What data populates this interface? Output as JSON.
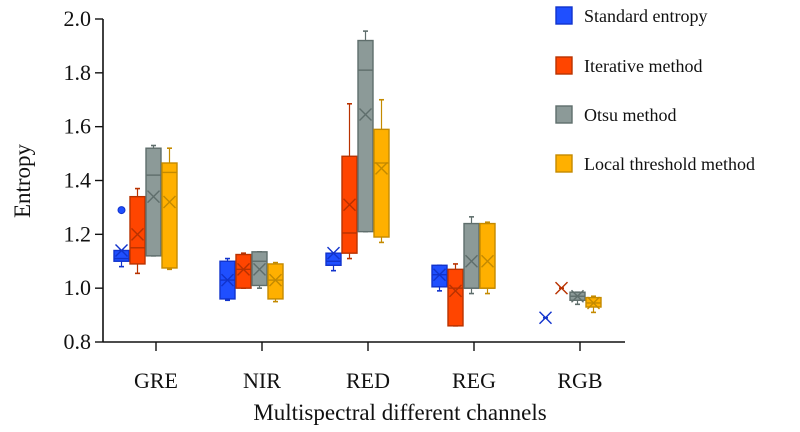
{
  "chart_data": {
    "type": "box",
    "title": "",
    "xlabel": "Multispectral different channels",
    "ylabel": "Entropy",
    "ylim": [
      0.8,
      2.0
    ],
    "yticks": [
      "0.8",
      "1.0",
      "1.2",
      "1.4",
      "1.6",
      "1.8",
      "2.0"
    ],
    "ytick_values": [
      0.8,
      1.0,
      1.2,
      1.4,
      1.6,
      1.8,
      2.0
    ],
    "categories": [
      "GRE",
      "NIR",
      "RED",
      "REG",
      "RGB"
    ],
    "legend_position": "top-right",
    "grid": false,
    "series": [
      {
        "name": "Standard entropy",
        "color": "#1f4fff",
        "stroke": "#1133cc",
        "boxes": [
          {
            "min": 1.08,
            "q1": 1.1,
            "median": 1.11,
            "q3": 1.14,
            "max": 1.14,
            "mean": 1.14,
            "outliers": [
              1.29
            ]
          },
          {
            "min": 0.955,
            "q1": 0.96,
            "median": 1.03,
            "q3": 1.1,
            "max": 1.11,
            "mean": 1.03,
            "outliers": []
          },
          {
            "min": 1.065,
            "q1": 1.085,
            "median": 1.1,
            "q3": 1.13,
            "max": 1.13,
            "mean": 1.13,
            "outliers": []
          },
          {
            "min": 0.99,
            "q1": 1.005,
            "median": 1.05,
            "q3": 1.085,
            "max": 1.085,
            "mean": 1.05,
            "outliers": []
          },
          {
            "min": 0.89,
            "q1": 0.89,
            "median": 0.89,
            "q3": 0.89,
            "max": 0.89,
            "mean": 0.89,
            "outliers": []
          }
        ]
      },
      {
        "name": "Iterative method",
        "color": "#ff4500",
        "stroke": "#b83200",
        "boxes": [
          {
            "min": 1.055,
            "q1": 1.09,
            "median": 1.15,
            "q3": 1.34,
            "max": 1.37,
            "mean": 1.2,
            "outliers": []
          },
          {
            "min": 1.0,
            "q1": 1.0,
            "median": 1.07,
            "q3": 1.125,
            "max": 1.13,
            "mean": 1.07,
            "outliers": []
          },
          {
            "min": 1.11,
            "q1": 1.13,
            "median": 1.205,
            "q3": 1.49,
            "max": 1.685,
            "mean": 1.31,
            "outliers": []
          },
          {
            "min": 0.86,
            "q1": 0.86,
            "median": 1.0,
            "q3": 1.07,
            "max": 1.09,
            "mean": 0.99,
            "outliers": []
          },
          {
            "min": 1.0,
            "q1": 1.0,
            "median": 1.0,
            "q3": 1.0,
            "max": 1.0,
            "mean": 1.0,
            "outliers": []
          }
        ]
      },
      {
        "name": "Otsu method",
        "color": "#8c9a98",
        "stroke": "#5f6e6c",
        "boxes": [
          {
            "min": 1.12,
            "q1": 1.12,
            "median": 1.42,
            "q3": 1.52,
            "max": 1.53,
            "mean": 1.34,
            "outliers": []
          },
          {
            "min": 1.0,
            "q1": 1.01,
            "median": 1.1,
            "q3": 1.135,
            "max": 1.135,
            "mean": 1.07,
            "outliers": []
          },
          {
            "min": 1.21,
            "q1": 1.21,
            "median": 1.81,
            "q3": 1.92,
            "max": 1.955,
            "mean": 1.645,
            "outliers": []
          },
          {
            "min": 0.98,
            "q1": 1.0,
            "median": 1.0,
            "q3": 1.24,
            "max": 1.265,
            "mean": 1.1,
            "outliers": []
          },
          {
            "min": 0.94,
            "q1": 0.955,
            "median": 0.97,
            "q3": 0.985,
            "max": 0.985,
            "mean": 0.97,
            "outliers": []
          }
        ]
      },
      {
        "name": "Local threshold method",
        "color": "#ffb000",
        "stroke": "#c48a00",
        "boxes": [
          {
            "min": 1.07,
            "q1": 1.075,
            "median": 1.43,
            "q3": 1.465,
            "max": 1.52,
            "mean": 1.32,
            "outliers": []
          },
          {
            "min": 0.95,
            "q1": 0.96,
            "median": 1.03,
            "q3": 1.09,
            "max": 1.095,
            "mean": 1.03,
            "outliers": []
          },
          {
            "min": 1.17,
            "q1": 1.19,
            "median": 1.465,
            "q3": 1.59,
            "max": 1.7,
            "mean": 1.445,
            "outliers": []
          },
          {
            "min": 0.98,
            "q1": 1.0,
            "median": 1.0,
            "q3": 1.24,
            "max": 1.245,
            "mean": 1.1,
            "outliers": []
          },
          {
            "min": 0.91,
            "q1": 0.93,
            "median": 0.945,
            "q3": 0.965,
            "max": 0.97,
            "mean": 0.945,
            "outliers": []
          }
        ]
      }
    ]
  }
}
